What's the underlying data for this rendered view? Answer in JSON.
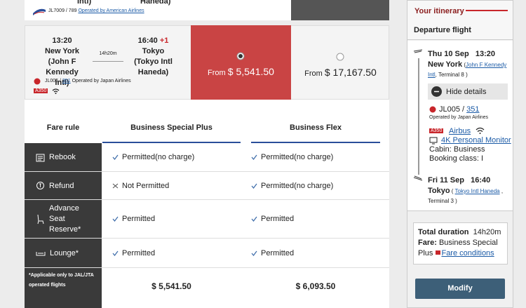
{
  "previous_flight": {
    "origin_tail": "Intl)",
    "destination_tail": "Haneda)",
    "flight": "JL7009 / 789",
    "operator": "Operated by American Airlines"
  },
  "flight": {
    "departure_time": "13:20",
    "origin": "New York",
    "origin_airport_1": "(John F Kennedy",
    "origin_airport_2": "Intl)",
    "duration": "14h20m",
    "arrival_time": "16:40",
    "day_offset": "+1",
    "destination": "Tokyo",
    "destination_airport_1": "(Tokyo Intl",
    "destination_airport_2": "Haneda)",
    "flight_number": "JL005 /",
    "flight_link": "351",
    "operator": "Operated by Japan Airlines",
    "aircraft": "A350"
  },
  "fares": [
    {
      "prefix": "From",
      "price": "$ 5,541.50"
    },
    {
      "prefix": "From",
      "price": "$ 17,167.50"
    }
  ],
  "fare_table": {
    "header": [
      "Fare rule",
      "Business Special Plus",
      "Business Flex"
    ],
    "rows": [
      {
        "label": "Rebook",
        "cells": [
          "Permitted(no charge)",
          "Permitted(no charge)"
        ]
      },
      {
        "label": "Refund",
        "cells": [
          "Not Permitted",
          "Permitted(no charge)"
        ]
      },
      {
        "label": "Advance Seat Reserve*",
        "cells": [
          "Permitted",
          "Permitted"
        ]
      },
      {
        "label": "Lounge*",
        "cells": [
          "Permitted",
          "Permitted"
        ]
      }
    ],
    "footnote": "*Applicable only to JAL/JTA operated flights",
    "totals": [
      "$ 5,541.50",
      "$ 6,093.50"
    ]
  },
  "itinerary": {
    "title": "Your itinerary",
    "section": "Departure flight",
    "departure": {
      "weekday": "Thu",
      "date": "10 Sep",
      "time": "13:20",
      "city": "New York",
      "airport": "John F Kennedy Intl",
      "terminal": ", Terminal 8 )"
    },
    "hide_details": "Hide details",
    "flight_number": "JL005 /",
    "flight_link": "351",
    "operator": "Operated by Japan Airlines",
    "aircraft_badge": "A350",
    "aircraft": "Airbus",
    "monitor": "4K Personal Monitor",
    "cabin": "Cabin: Business",
    "booking_class": "Booking class: I",
    "arrival": {
      "weekday": "Fri",
      "date": "11 Sep",
      "time": "16:40",
      "city": "Tokyo",
      "airport": "Tokyo Intl Haneda",
      "terminal": "Terminal 3 )"
    },
    "total_label": "Total duration",
    "total_value": "14h20m",
    "fare_label": "Fare:",
    "fare_value": "Business Special Plus",
    "fare_conditions": "Fare conditions",
    "modify": "Modify"
  }
}
